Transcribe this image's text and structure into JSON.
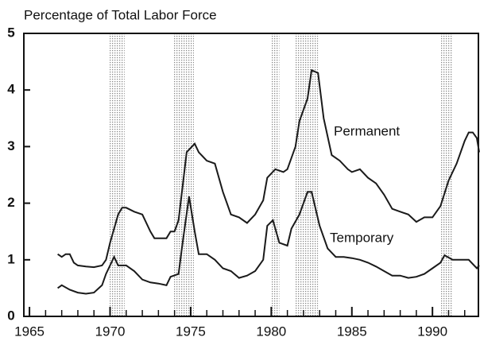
{
  "chart_data": {
    "type": "line",
    "title": "Percentage of Total Labor Force",
    "xlim": [
      1964.65,
      1992.9
    ],
    "ylim": [
      0,
      5
    ],
    "xticks": [
      1965,
      1970,
      1975,
      1980,
      1985,
      1990
    ],
    "yticks": [
      0,
      1,
      2,
      3,
      4,
      5
    ],
    "recessions": [
      [
        1969.9,
        1970.9
      ],
      [
        1973.9,
        1975.2
      ],
      [
        1980.0,
        1980.5
      ],
      [
        1981.5,
        1982.9
      ],
      [
        1990.5,
        1991.2
      ]
    ],
    "series": [
      {
        "name": "Permanent",
        "color": "#1a1a1a",
        "x": [
          1966.75,
          1967,
          1967.25,
          1967.5,
          1967.75,
          1968,
          1968.5,
          1969,
          1969.5,
          1969.75,
          1970,
          1970.25,
          1970.5,
          1970.75,
          1971,
          1971.5,
          1972,
          1972.5,
          1972.75,
          1973.5,
          1973.75,
          1974,
          1974.25,
          1974.5,
          1974.75,
          1975.25,
          1975.5,
          1976,
          1976.5,
          1977,
          1977.5,
          1978,
          1978.5,
          1979,
          1979.5,
          1979.75,
          1980.25,
          1980.75,
          1981,
          1981.5,
          1981.75,
          1982.25,
          1982.5,
          1982.9,
          1983.25,
          1983.75,
          1984.25,
          1984.75,
          1985,
          1985.5,
          1986,
          1986.5,
          1987,
          1987.5,
          1988,
          1988.5,
          1989,
          1989.5,
          1990,
          1990.5,
          1991,
          1991.5,
          1992,
          1992.25,
          1992.5,
          1992.75,
          1992.9
        ],
        "values": [
          1.1,
          1.05,
          1.1,
          1.1,
          0.95,
          0.9,
          0.88,
          0.87,
          0.9,
          1.0,
          1.3,
          1.55,
          1.8,
          1.92,
          1.92,
          1.85,
          1.8,
          1.5,
          1.38,
          1.38,
          1.5,
          1.5,
          1.7,
          2.3,
          2.9,
          3.05,
          2.9,
          2.75,
          2.7,
          2.2,
          1.8,
          1.75,
          1.65,
          1.8,
          2.05,
          2.45,
          2.6,
          2.55,
          2.6,
          3.0,
          3.45,
          3.85,
          4.35,
          4.3,
          3.5,
          2.85,
          2.75,
          2.6,
          2.55,
          2.6,
          2.45,
          2.35,
          2.15,
          1.9,
          1.85,
          1.8,
          1.67,
          1.75,
          1.75,
          1.95,
          2.4,
          2.7,
          3.1,
          3.25,
          3.25,
          3.15,
          2.9
        ]
      },
      {
        "name": "Temporary",
        "color": "#1a1a1a",
        "x": [
          1966.75,
          1967,
          1967.5,
          1968,
          1968.5,
          1969,
          1969.5,
          1969.75,
          1970.25,
          1970.5,
          1971,
          1971.5,
          1972,
          1972.5,
          1973,
          1973.5,
          1973.75,
          1974.25,
          1974.5,
          1974.9,
          1975.25,
          1975.5,
          1976,
          1976.5,
          1977,
          1977.5,
          1978,
          1978.5,
          1979,
          1979.5,
          1979.75,
          1980.1,
          1980.5,
          1981,
          1981.25,
          1981.75,
          1982.25,
          1982.5,
          1983,
          1983.5,
          1984,
          1984.5,
          1985,
          1985.5,
          1986,
          1986.5,
          1987,
          1987.5,
          1988,
          1988.5,
          1989,
          1989.5,
          1990,
          1990.5,
          1990.75,
          1991.25,
          1991.75,
          1992.25,
          1992.75,
          1992.9
        ],
        "values": [
          0.5,
          0.55,
          0.47,
          0.42,
          0.4,
          0.42,
          0.55,
          0.75,
          1.05,
          0.9,
          0.9,
          0.8,
          0.65,
          0.6,
          0.58,
          0.55,
          0.7,
          0.75,
          1.3,
          2.12,
          1.5,
          1.1,
          1.1,
          1.0,
          0.85,
          0.8,
          0.68,
          0.72,
          0.8,
          1.0,
          1.6,
          1.7,
          1.3,
          1.25,
          1.55,
          1.8,
          2.2,
          2.2,
          1.6,
          1.2,
          1.05,
          1.05,
          1.03,
          1.0,
          0.95,
          0.88,
          0.8,
          0.72,
          0.72,
          0.68,
          0.7,
          0.75,
          0.85,
          0.95,
          1.08,
          1.0,
          1.0,
          1.0,
          0.85,
          0.9
        ]
      }
    ]
  }
}
